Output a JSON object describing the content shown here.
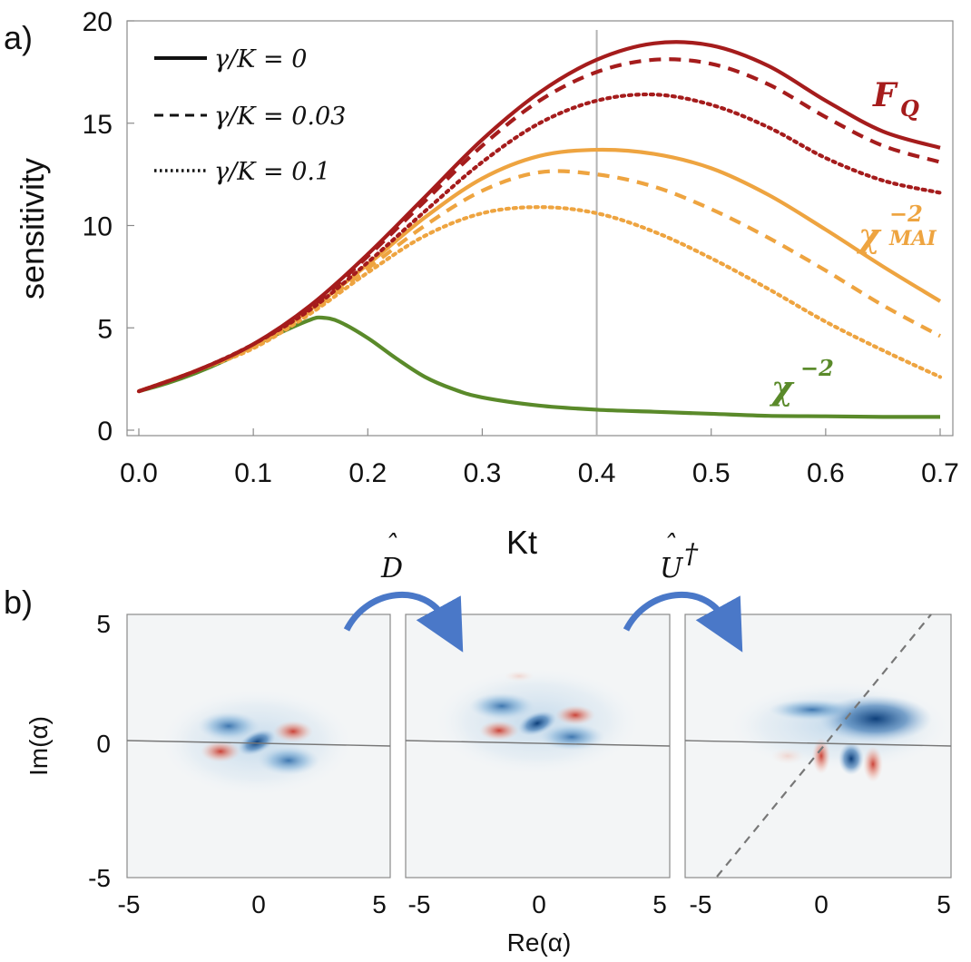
{
  "panel_a_label": "a)",
  "panel_b_label": "b)",
  "chart_data": [
    {
      "type": "line",
      "xlabel": "Kt",
      "ylabel": "sensitivity",
      "xlim": [
        0,
        0.7
      ],
      "ylim": [
        0,
        20
      ],
      "x_ticks": [
        "0.0",
        "0.1",
        "0.2",
        "0.3",
        "0.4",
        "0.5",
        "0.6",
        "0.7"
      ],
      "y_ticks": [
        "0",
        "5",
        "10",
        "15",
        "20"
      ],
      "grid": false,
      "legend_placement": "top-left",
      "legend": [
        {
          "style": "solid",
          "label": "γ/K = 0"
        },
        {
          "style": "dashed",
          "label": "γ/K = 0.03"
        },
        {
          "style": "dotted",
          "label": "γ/K = 0.1"
        }
      ],
      "vertical_line": 0.4,
      "colors": {
        "FQ": "#a51c1c",
        "MAI": "#eea440",
        "chi": "#5a8a2a",
        "guide": "#b3b3b3"
      },
      "series": [
        {
          "group": "FQ",
          "style": "solid",
          "x": [
            0,
            0.05,
            0.1,
            0.15,
            0.2,
            0.25,
            0.3,
            0.35,
            0.4,
            0.45,
            0.5,
            0.55,
            0.6,
            0.65,
            0.7
          ],
          "values": [
            1.9,
            2.9,
            4.2,
            6.1,
            8.6,
            11.4,
            14.2,
            16.5,
            18.1,
            18.9,
            18.8,
            17.8,
            16.1,
            14.6,
            13.8
          ]
        },
        {
          "group": "FQ",
          "style": "dashed",
          "x": [
            0,
            0.05,
            0.1,
            0.15,
            0.2,
            0.25,
            0.3,
            0.35,
            0.4,
            0.45,
            0.5,
            0.55,
            0.6,
            0.65,
            0.7
          ],
          "values": [
            1.9,
            2.9,
            4.2,
            6.0,
            8.5,
            11.2,
            13.9,
            16.1,
            17.5,
            18.1,
            17.9,
            16.9,
            15.3,
            13.9,
            13.1
          ]
        },
        {
          "group": "FQ",
          "style": "dotted",
          "x": [
            0,
            0.05,
            0.1,
            0.15,
            0.2,
            0.25,
            0.3,
            0.35,
            0.4,
            0.45,
            0.5,
            0.55,
            0.6,
            0.65,
            0.7
          ],
          "values": [
            1.9,
            2.9,
            4.2,
            5.9,
            8.2,
            10.7,
            13.1,
            15.0,
            16.1,
            16.4,
            15.9,
            14.8,
            13.3,
            12.2,
            11.6
          ]
        },
        {
          "group": "MAI",
          "style": "solid",
          "x": [
            0,
            0.05,
            0.1,
            0.15,
            0.2,
            0.25,
            0.3,
            0.35,
            0.4,
            0.45,
            0.5,
            0.55,
            0.6,
            0.65,
            0.7
          ],
          "values": [
            1.9,
            2.9,
            4.1,
            5.9,
            8.1,
            10.4,
            12.3,
            13.4,
            13.7,
            13.5,
            12.8,
            11.5,
            9.8,
            8.0,
            6.3
          ]
        },
        {
          "group": "MAI",
          "style": "dashed",
          "x": [
            0,
            0.05,
            0.1,
            0.15,
            0.2,
            0.25,
            0.3,
            0.35,
            0.4,
            0.45,
            0.5,
            0.55,
            0.6,
            0.65,
            0.7
          ],
          "values": [
            1.9,
            2.9,
            4.1,
            5.8,
            7.9,
            10.0,
            11.7,
            12.6,
            12.5,
            11.9,
            10.8,
            9.4,
            7.8,
            6.1,
            4.6
          ]
        },
        {
          "group": "MAI",
          "style": "dotted",
          "x": [
            0,
            0.05,
            0.1,
            0.15,
            0.2,
            0.25,
            0.3,
            0.35,
            0.4,
            0.45,
            0.5,
            0.55,
            0.6,
            0.65,
            0.7
          ],
          "values": [
            1.9,
            2.9,
            4.0,
            5.7,
            7.7,
            9.5,
            10.6,
            10.9,
            10.6,
            9.7,
            8.4,
            6.9,
            5.3,
            3.9,
            2.6
          ]
        },
        {
          "group": "chi",
          "style": "solid",
          "x": [
            0,
            0.025,
            0.05,
            0.075,
            0.1,
            0.125,
            0.15,
            0.16,
            0.175,
            0.2,
            0.225,
            0.25,
            0.275,
            0.3,
            0.35,
            0.4,
            0.45,
            0.5,
            0.55,
            0.6,
            0.65,
            0.7
          ],
          "values": [
            1.9,
            2.3,
            2.8,
            3.4,
            4.1,
            4.8,
            5.4,
            5.5,
            5.3,
            4.5,
            3.5,
            2.6,
            2.0,
            1.6,
            1.2,
            1.0,
            0.9,
            0.8,
            0.7,
            0.68,
            0.65,
            0.65
          ]
        }
      ],
      "series_labels": {
        "FQ": "F",
        "FQ_sub": "Q",
        "MAI": "χ",
        "MAI_sup": "−2",
        "MAI_sub": "MAI",
        "chi": "χ",
        "chi_sup": "−2"
      }
    }
  ],
  "panel_b": {
    "xlabel": "Re(α)",
    "ylabel": "Im(α)",
    "x_ticks": [
      "-5",
      "0",
      "5"
    ],
    "y_ticks": [
      "5",
      "0",
      "-5"
    ],
    "operators": [
      {
        "symbol": "D",
        "hat": "ˆ",
        "dagger": ""
      },
      {
        "symbol": "U",
        "hat": "ˆ",
        "dagger": "†"
      }
    ],
    "colors": {
      "positive": "#c93a2e",
      "negative": "#1e5a9c",
      "arrow": "#4a78c8",
      "background": "#f3f5f6"
    }
  }
}
